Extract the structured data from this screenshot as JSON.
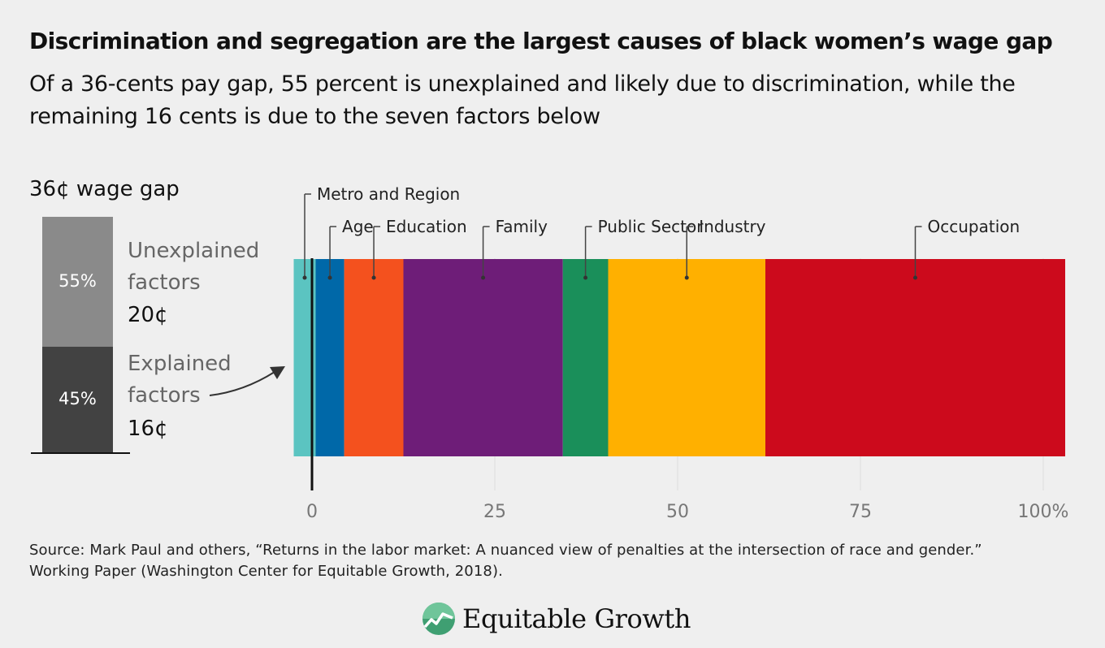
{
  "title": "Discrimination and segregation are the largest causes of black women’s wage gap",
  "subtitle": "Of a 36-cents pay gap, 55 percent is unexplained and likely due to discrimination, while the remaining 16 cents is due to the seven factors below",
  "gap_panel": {
    "title": "36¢ wage gap",
    "unexplained": {
      "pct_label": "55%",
      "label_line1": "Unexplained",
      "label_line2": "factors",
      "value": "20¢",
      "share": 0.55
    },
    "explained": {
      "pct_label": "45%",
      "label_line1": "Explained",
      "label_line2": "factors",
      "value": "16¢",
      "share": 0.45
    }
  },
  "chart_data": {
    "type": "bar",
    "orientation": "horizontal-stacked",
    "title": "",
    "xlabel": "",
    "ylabel": "",
    "xlim": [
      -2.5,
      103
    ],
    "x_ticks": [
      0,
      25,
      50,
      75,
      100
    ],
    "x_tick_labels": [
      "0",
      "25",
      "50",
      "75",
      "100%"
    ],
    "grid": true,
    "series": [
      {
        "name": "Metro and Region",
        "start": -2.5,
        "end": 0.5,
        "color": "#5bc4c1"
      },
      {
        "name": "Age",
        "start": 0.5,
        "end": 4.4,
        "color": "#0068a8"
      },
      {
        "name": "Education",
        "start": 4.4,
        "end": 12.5,
        "color": "#f4511e"
      },
      {
        "name": "Family",
        "start": 12.5,
        "end": 34.3,
        "color": "#6e1d78"
      },
      {
        "name": "Public Sector",
        "start": 34.3,
        "end": 40.5,
        "color": "#1a8f5a"
      },
      {
        "name": "Industry",
        "start": 40.5,
        "end": 62.0,
        "color": "#ffb000"
      },
      {
        "name": "Occupation",
        "start": 62.0,
        "end": 103.0,
        "color": "#cc0a1c"
      }
    ]
  },
  "colors": {
    "background": "#efefef",
    "unexplained_bar": "#8a8a8a",
    "explained_bar": "#424242",
    "grid": "#dcdcdc"
  },
  "source": {
    "line1": "Source: Mark Paul and others, “Returns in the labor market: A nuanced view of penalties at the intersection of race and gender.”",
    "line2": "Working Paper (Washington Center for Equitable Growth, 2018)."
  },
  "brand": {
    "name": "Equitable Growth",
    "logo_icon": "growth-leaf-icon"
  }
}
